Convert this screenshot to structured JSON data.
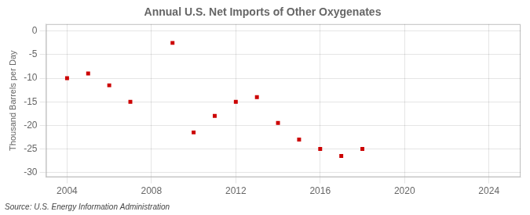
{
  "chart_data": {
    "type": "scatter",
    "title": "Annual U.S. Net Imports of Other Oxygenates",
    "ylabel": "Thousand Barrels per Day",
    "annotation": "Source: U.S. Energy Information Administration",
    "x": [
      2004,
      2005,
      2006,
      2007,
      2009,
      2010,
      2011,
      2012,
      2013,
      2014,
      2015,
      2016,
      2017,
      2018
    ],
    "values": [
      -10.0,
      -9.0,
      -11.5,
      -15.0,
      -2.5,
      -21.5,
      -18.0,
      -15.0,
      -14.0,
      -19.5,
      -23.0,
      -25.0,
      -26.5,
      -25.0
    ],
    "color": "#cc0000",
    "marker": "square",
    "xlim": [
      2003.0,
      2025.5
    ],
    "ylim": [
      -31,
      1.5
    ],
    "xticks": [
      2004,
      2008,
      2012,
      2016,
      2020,
      2024
    ],
    "yticks": [
      0,
      -5,
      -10,
      -15,
      -20,
      -25,
      -30
    ],
    "grid": true
  }
}
